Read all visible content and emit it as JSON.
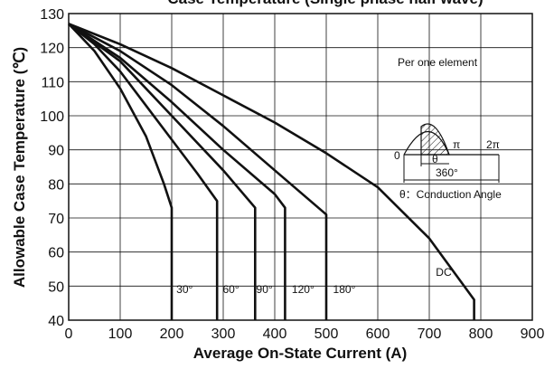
{
  "chart_data": {
    "type": "line",
    "title": "Case Temperature (Single phase half wave)",
    "xlabel": "Average On-State Current (A)",
    "ylabel": "Allowable Case Temperature (℃)",
    "xlim": [
      0,
      900
    ],
    "ylim": [
      40,
      130
    ],
    "xticks": [
      0,
      100,
      200,
      300,
      400,
      500,
      600,
      700,
      800,
      900
    ],
    "yticks": [
      40,
      50,
      60,
      70,
      80,
      90,
      100,
      110,
      120,
      130
    ],
    "grid": true,
    "annotation": "Per one element",
    "series": [
      {
        "name": "30°",
        "points": [
          [
            0,
            127
          ],
          [
            50,
            119
          ],
          [
            100,
            108
          ],
          [
            150,
            94
          ],
          [
            185,
            80
          ],
          [
            200,
            73
          ],
          [
            200,
            40
          ]
        ]
      },
      {
        "name": "60°",
        "points": [
          [
            0,
            127
          ],
          [
            50,
            121
          ],
          [
            100,
            113
          ],
          [
            150,
            103
          ],
          [
            200,
            93
          ],
          [
            250,
            83
          ],
          [
            288,
            75
          ],
          [
            288,
            40
          ]
        ]
      },
      {
        "name": "90°",
        "points": [
          [
            0,
            127
          ],
          [
            100,
            116
          ],
          [
            200,
            100
          ],
          [
            300,
            84
          ],
          [
            362,
            73
          ],
          [
            362,
            40
          ]
        ]
      },
      {
        "name": "120°",
        "points": [
          [
            0,
            127
          ],
          [
            100,
            117
          ],
          [
            200,
            104
          ],
          [
            300,
            90
          ],
          [
            400,
            77
          ],
          [
            420,
            73
          ],
          [
            420,
            40
          ]
        ]
      },
      {
        "name": "180°",
        "points": [
          [
            0,
            127
          ],
          [
            100,
            119
          ],
          [
            200,
            109
          ],
          [
            300,
            97
          ],
          [
            400,
            84
          ],
          [
            500,
            71
          ],
          [
            500,
            66
          ],
          [
            500,
            40
          ]
        ]
      },
      {
        "name": "DC",
        "points": [
          [
            0,
            127
          ],
          [
            100,
            121
          ],
          [
            200,
            114
          ],
          [
            300,
            106
          ],
          [
            400,
            98
          ],
          [
            500,
            89
          ],
          [
            600,
            79
          ],
          [
            700,
            64
          ],
          [
            787,
            46
          ],
          [
            787,
            40
          ]
        ]
      }
    ],
    "series_labels": [
      {
        "text": "30°",
        "x": 225,
        "y": 48
      },
      {
        "text": "60°",
        "x": 315,
        "y": 48
      },
      {
        "text": "90°",
        "x": 380,
        "y": 48
      },
      {
        "text": "120°",
        "x": 455,
        "y": 48
      },
      {
        "text": "180°",
        "x": 535,
        "y": 48
      },
      {
        "text": "DC",
        "x": 728,
        "y": 53
      }
    ],
    "inset": {
      "labels": {
        "zero": "0",
        "pi": "π",
        "two_pi": "2π",
        "theta": "θ",
        "period": "360°",
        "legend": "θ：Conduction Angle"
      }
    }
  }
}
